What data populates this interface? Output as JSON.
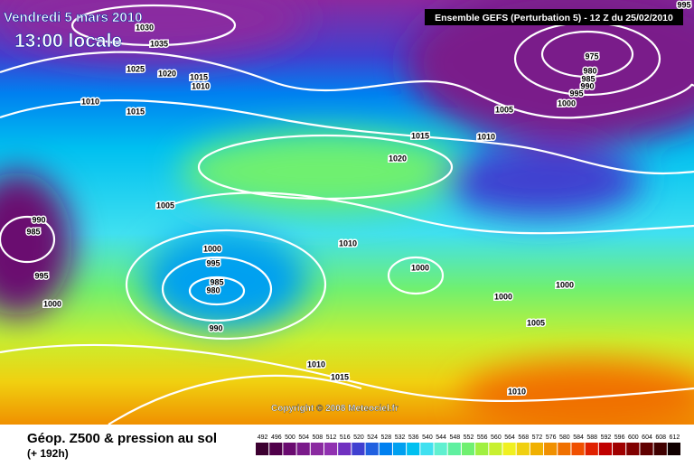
{
  "header": {
    "date": "Vendredi 5 mars 2010",
    "time": "13:00 locale",
    "model": "Ensemble GEFS (Perturbation 5) - 12 Z du 25/02/2010",
    "copyright": "Copyright © 2008 Meteociel.fr"
  },
  "footer": {
    "title": "Géop. Z500 & pression au sol",
    "lead": "(+ 192h)"
  },
  "legend": {
    "labels": [
      "492",
      "496",
      "500",
      "504",
      "508",
      "512",
      "516",
      "520",
      "524",
      "528",
      "532",
      "536",
      "540",
      "544",
      "548",
      "552",
      "556",
      "560",
      "564",
      "568",
      "572",
      "576",
      "580",
      "584",
      "588",
      "592",
      "596",
      "600",
      "604",
      "608",
      "612"
    ],
    "colors": [
      "#3c0030",
      "#50004a",
      "#6a0a70",
      "#7a1a8a",
      "#8a2aa0",
      "#9030b0",
      "#7030c0",
      "#4040d0",
      "#2060e0",
      "#0080f0",
      "#00a0f0",
      "#00c0f0",
      "#40e0f0",
      "#60f0d0",
      "#60f0a0",
      "#70f070",
      "#a0f040",
      "#c8f030",
      "#f0f020",
      "#f0d010",
      "#f0b000",
      "#f09000",
      "#f07000",
      "#f05000",
      "#e02000",
      "#c00000",
      "#a00000",
      "#800000",
      "#600000",
      "#400000",
      "#100000"
    ]
  },
  "isobars": [
    "1030",
    "1035",
    "1025",
    "1020",
    "1015",
    "1010",
    "1010",
    "1015",
    "975",
    "980",
    "985",
    "990",
    "995",
    "1000",
    "1005",
    "1010",
    "1015",
    "1020",
    "1005",
    "990",
    "985",
    "995",
    "1000",
    "1000",
    "995",
    "985",
    "980",
    "990",
    "1010",
    "1000",
    "1000",
    "1000",
    "1005",
    "1010",
    "1015",
    "1010",
    "995"
  ]
}
